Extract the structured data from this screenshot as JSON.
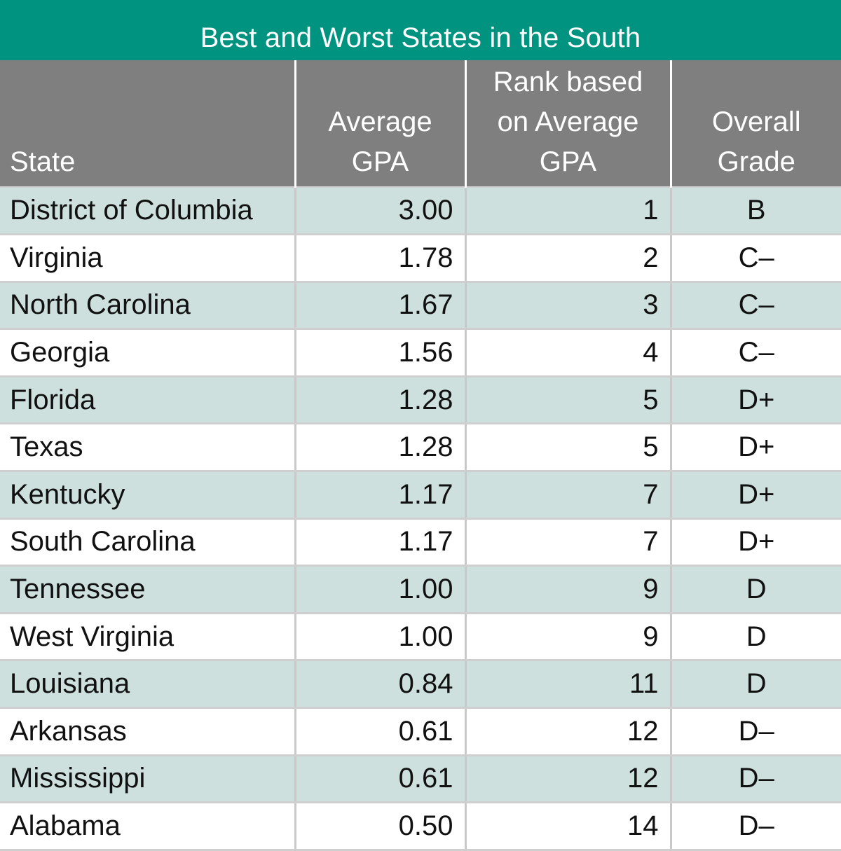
{
  "title": "Best and Worst States in the South",
  "colors": {
    "title_bg": "#009480",
    "header_bg": "#7f7f7f",
    "shaded_row_bg": "#cde0de",
    "plain_row_bg": "#ffffff"
  },
  "table": {
    "headers": [
      {
        "lines": [
          "State"
        ]
      },
      {
        "lines": [
          "Average",
          "GPA"
        ]
      },
      {
        "lines": [
          "Rank based",
          "on Average",
          "GPA"
        ]
      },
      {
        "lines": [
          "Overall",
          "Grade"
        ]
      }
    ],
    "rows": [
      {
        "state": "District of Columbia",
        "gpa": "3.00",
        "rank": "1",
        "grade": "B"
      },
      {
        "state": "Virginia",
        "gpa": "1.78",
        "rank": "2",
        "grade": "C–"
      },
      {
        "state": "North Carolina",
        "gpa": "1.67",
        "rank": "3",
        "grade": "C–"
      },
      {
        "state": "Georgia",
        "gpa": "1.56",
        "rank": "4",
        "grade": "C–"
      },
      {
        "state": "Florida",
        "gpa": "1.28",
        "rank": "5",
        "grade": "D+"
      },
      {
        "state": "Texas",
        "gpa": "1.28",
        "rank": "5",
        "grade": "D+"
      },
      {
        "state": "Kentucky",
        "gpa": "1.17",
        "rank": "7",
        "grade": "D+"
      },
      {
        "state": "South Carolina",
        "gpa": "1.17",
        "rank": "7",
        "grade": "D+"
      },
      {
        "state": "Tennessee",
        "gpa": "1.00",
        "rank": "9",
        "grade": "D"
      },
      {
        "state": "West Virginia",
        "gpa": "1.00",
        "rank": "9",
        "grade": "D"
      },
      {
        "state": "Louisiana",
        "gpa": "0.84",
        "rank": "11",
        "grade": "D"
      },
      {
        "state": "Arkansas",
        "gpa": "0.61",
        "rank": "12",
        "grade": "D–"
      },
      {
        "state": "Mississippi",
        "gpa": "0.61",
        "rank": "12",
        "grade": "D–"
      },
      {
        "state": "Alabama",
        "gpa": "0.50",
        "rank": "14",
        "grade": "D–"
      }
    ]
  }
}
